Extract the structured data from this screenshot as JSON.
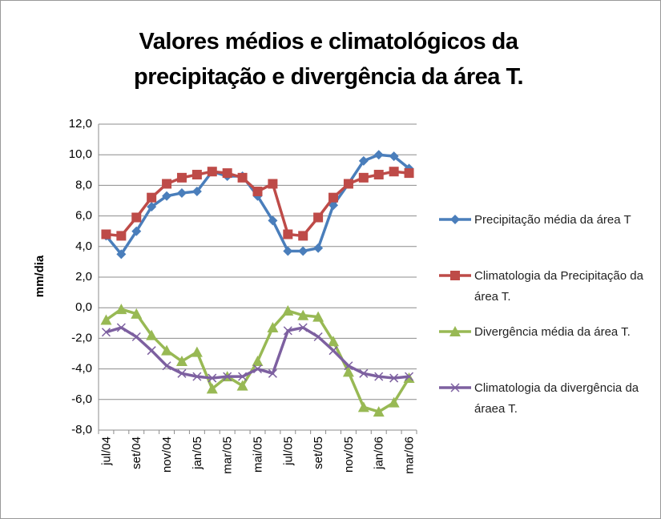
{
  "chart_data": {
    "type": "line",
    "title": "Valores médios e climatológicos da precipitação e divergência da área T.",
    "y_label": "mm/dia",
    "categories": [
      "jul/04",
      null,
      "set/04",
      null,
      "nov/04",
      null,
      "jan/05",
      null,
      "mar/05",
      null,
      "mai/05",
      null,
      "jul/05",
      null,
      "set/05",
      null,
      "nov/05",
      null,
      "jan/06",
      null,
      "mar/06"
    ],
    "series": [
      {
        "name": "Precipitação média da área T",
        "color": "#4a7ebb",
        "marker": "diamond",
        "values": [
          4.7,
          3.5,
          5.0,
          6.6,
          7.3,
          7.5,
          7.6,
          8.9,
          8.6,
          8.6,
          7.3,
          5.7,
          3.7,
          3.7,
          3.9,
          6.7,
          8.1,
          9.6,
          10.0,
          9.9,
          9.1
        ]
      },
      {
        "name": "Climatologia da Precipitação da área T.",
        "color": "#be4b48",
        "marker": "square",
        "values": [
          4.8,
          4.7,
          5.9,
          7.2,
          8.1,
          8.5,
          8.7,
          8.9,
          8.8,
          8.5,
          7.6,
          8.1,
          4.8,
          4.7,
          5.9,
          7.2,
          8.1,
          8.5,
          8.7,
          8.9,
          8.8
        ]
      },
      {
        "name": "Divergência média da área T.",
        "color": "#98b954",
        "marker": "triangle",
        "values": [
          -0.8,
          -0.1,
          -0.4,
          -1.8,
          -2.8,
          -3.5,
          -2.9,
          -5.3,
          -4.5,
          -5.1,
          -3.5,
          -1.3,
          -0.2,
          -0.5,
          -0.6,
          -2.2,
          -4.2,
          -6.5,
          -6.8,
          -6.2,
          -4.6
        ]
      },
      {
        "name": "Climatologia da divergência da áraea T.",
        "color": "#7d60a0",
        "marker": "x",
        "values": [
          -1.6,
          -1.3,
          -1.9,
          -2.8,
          -3.8,
          -4.3,
          -4.5,
          -4.6,
          -4.5,
          -4.5,
          -4.0,
          -4.3,
          -1.5,
          -1.3,
          -1.9,
          -2.8,
          -3.8,
          -4.3,
          -4.5,
          -4.6,
          -4.5
        ]
      }
    ],
    "ylim": [
      -8,
      12
    ],
    "yticks": [
      {
        "value": -8,
        "label": "-8,0"
      },
      {
        "value": -6,
        "label": "-6,0"
      },
      {
        "value": -4,
        "label": "-4,0"
      },
      {
        "value": -2,
        "label": "-2,0"
      },
      {
        "value": 0,
        "label": "0,0"
      },
      {
        "value": 2,
        "label": "2,0"
      },
      {
        "value": 4,
        "label": "4,0"
      },
      {
        "value": 6,
        "label": "6,0"
      },
      {
        "value": 8,
        "label": "8,0"
      },
      {
        "value": 10,
        "label": "10,0"
      },
      {
        "value": 12,
        "label": "12,0"
      }
    ],
    "grid": true,
    "legend": "right"
  }
}
